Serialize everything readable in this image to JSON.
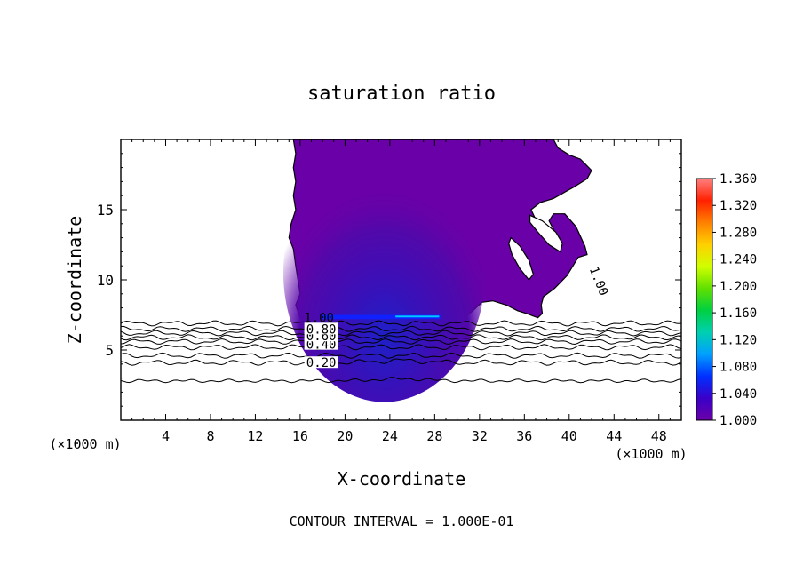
{
  "chart_data": {
    "type": "heatmap",
    "title": "saturation ratio",
    "xlabel": "X-coordinate",
    "ylabel": "Z-coordinate",
    "x_unit_label": "(×1000 m)",
    "y_unit_label": "(×1000 m)",
    "xlim": [
      0,
      50
    ],
    "ylim": [
      0,
      20
    ],
    "x_ticks": [
      4,
      8,
      12,
      16,
      20,
      24,
      28,
      32,
      36,
      40,
      44,
      48
    ],
    "y_ticks": [
      5,
      10,
      15
    ],
    "footer": "CONTOUR INTERVAL = 1.000E-01",
    "colorbar": {
      "range": [
        1.0,
        1.36
      ],
      "labels": [
        "1.360",
        "1.320",
        "1.280",
        "1.240",
        "1.200",
        "1.160",
        "1.120",
        "1.080",
        "1.040",
        "1.000"
      ],
      "colors": [
        "#6a00a8",
        "#3a00c8",
        "#0030ff",
        "#00a0ff",
        "#00d0b0",
        "#00d040",
        "#60e000",
        "#d0ff00",
        "#ffd000",
        "#ff8000",
        "#ff2000",
        "#ff8080"
      ]
    },
    "contour_labels": [
      {
        "text": "0.20",
        "x": 17.8,
        "z": 4.1
      },
      {
        "text": "0.40",
        "x": 17.8,
        "z": 5.4
      },
      {
        "text": "0.60",
        "x": 17.8,
        "z": 6.0
      },
      {
        "text": "0.80",
        "x": 17.8,
        "z": 6.5
      },
      {
        "text": "1.00",
        "x": 17.6,
        "z": 7.3
      },
      {
        "text": "1.00",
        "x": 42.3,
        "z": 9.8
      }
    ],
    "supersaturated_region": {
      "level": 1.0,
      "outline": [
        [
          15.4,
          20
        ],
        [
          15.6,
          19
        ],
        [
          15.4,
          18
        ],
        [
          15.6,
          17
        ],
        [
          15.4,
          16
        ],
        [
          15.6,
          15
        ],
        [
          15.2,
          14
        ],
        [
          15.0,
          13
        ],
        [
          15.4,
          12.2
        ],
        [
          15.6,
          11
        ],
        [
          15.8,
          10
        ],
        [
          16.0,
          9
        ],
        [
          15.6,
          8.2
        ],
        [
          16.0,
          7.3
        ],
        [
          20,
          7.3
        ],
        [
          24,
          7.3
        ],
        [
          28,
          7.3
        ],
        [
          30.4,
          7.1
        ],
        [
          31.4,
          7.8
        ],
        [
          32.2,
          8.4
        ],
        [
          33.2,
          8.5
        ],
        [
          34.4,
          8.2
        ],
        [
          35.4,
          7.8
        ],
        [
          36.2,
          7.6
        ],
        [
          37.2,
          7.3
        ],
        [
          37.6,
          7.6
        ],
        [
          37.5,
          8.2
        ],
        [
          37.7,
          8.8
        ],
        [
          38.7,
          9.4
        ],
        [
          39.8,
          10.3
        ],
        [
          40.8,
          11.6
        ],
        [
          41.6,
          11.8
        ],
        [
          41.4,
          12.4
        ],
        [
          40.6,
          13.8
        ],
        [
          39.6,
          14.7
        ],
        [
          38.6,
          14.7
        ],
        [
          38.2,
          14.2
        ],
        [
          38.6,
          13.6
        ],
        [
          38.0,
          13.2
        ],
        [
          37.3,
          13.8
        ],
        [
          36.6,
          15.0
        ],
        [
          37.4,
          15.5
        ],
        [
          38.6,
          15.8
        ],
        [
          40.4,
          16.6
        ],
        [
          41.6,
          17.2
        ],
        [
          42.0,
          17.8
        ],
        [
          41.0,
          18.6
        ],
        [
          40.0,
          18.9
        ],
        [
          39.0,
          19.4
        ],
        [
          38.6,
          20
        ]
      ],
      "interior": {
        "min": 1.0,
        "max": 1.1,
        "peak_x": 23.5,
        "peak_z": 7.6
      }
    },
    "contours_below": [
      {
        "level": 0.9,
        "z": 6.9
      },
      {
        "level": 0.8,
        "z": 6.5
      },
      {
        "level": 0.7,
        "z": 6.2
      },
      {
        "level": 0.6,
        "z": 5.9
      },
      {
        "level": 0.5,
        "z": 5.6
      },
      {
        "level": 0.4,
        "z": 5.2
      },
      {
        "level": 0.3,
        "z": 4.6
      },
      {
        "level": 0.2,
        "z": 4.1
      },
      {
        "level": 0.1,
        "z": 2.8
      }
    ]
  }
}
